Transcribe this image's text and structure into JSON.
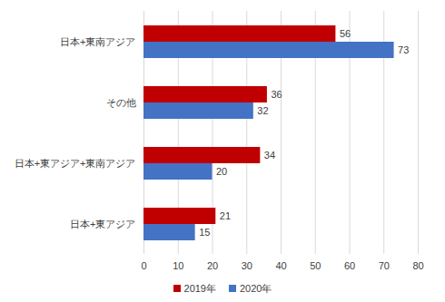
{
  "chart_data": {
    "type": "bar",
    "orientation": "horizontal",
    "categories": [
      "日本+東南アジア",
      "その他",
      "日本+東アジア+東南アジア",
      "日本+東アジア"
    ],
    "series": [
      {
        "name": "2019年",
        "color": "#c00000",
        "values": [
          56,
          36,
          34,
          21
        ]
      },
      {
        "name": "2020年",
        "color": "#4472c4",
        "values": [
          73,
          32,
          20,
          15
        ]
      }
    ],
    "xlim": [
      0,
      80
    ],
    "xticks": [
      0,
      10,
      20,
      30,
      40,
      50,
      60,
      70,
      80
    ],
    "grid": true,
    "data_labels": true,
    "legend": "bottom"
  }
}
